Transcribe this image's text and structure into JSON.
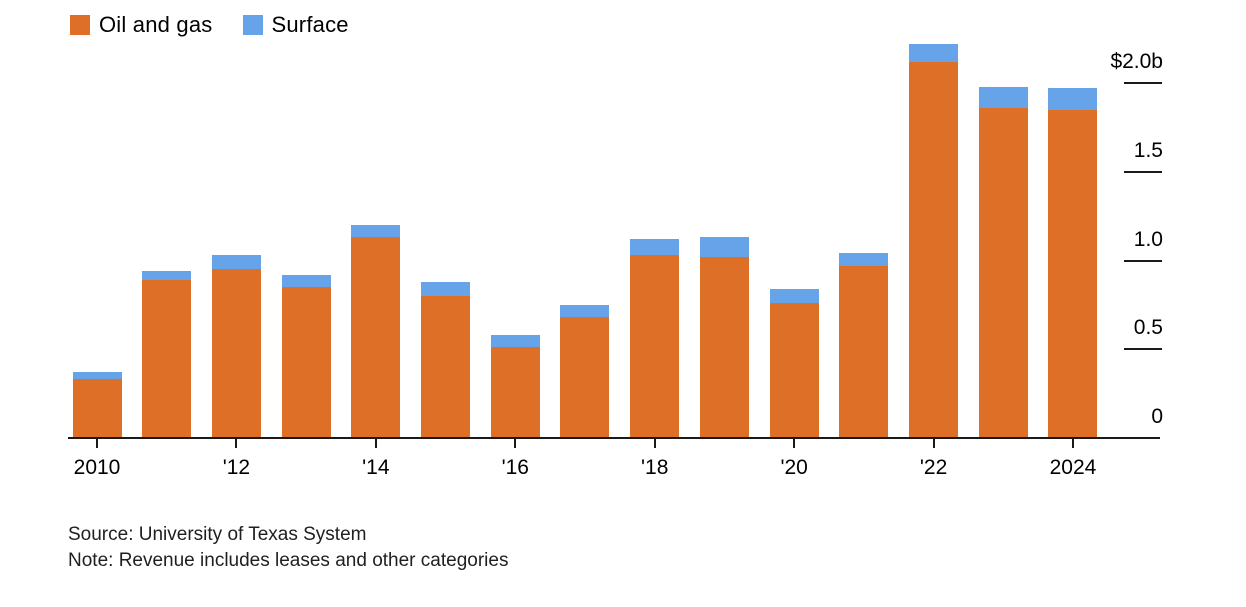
{
  "legend": {
    "items": [
      {
        "label": "Oil and gas",
        "color": "#DD6F27"
      },
      {
        "label": "Surface",
        "color": "#67A3E8"
      }
    ]
  },
  "chart_data": {
    "type": "bar",
    "stacked": true,
    "units": "billions USD",
    "title": "",
    "xlabel": "",
    "ylabel": "",
    "grid": false,
    "legend_position": "top-left",
    "categories": [
      2010,
      2011,
      2012,
      2013,
      2014,
      2015,
      2016,
      2017,
      2018,
      2019,
      2020,
      2021,
      2022,
      2023,
      2024
    ],
    "series": [
      {
        "name": "Oil and gas",
        "color": "#DD6F27",
        "values": [
          0.33,
          0.89,
          0.95,
          0.85,
          1.13,
          0.8,
          0.51,
          0.68,
          1.03,
          1.02,
          0.76,
          0.97,
          2.12,
          1.86,
          1.85
        ]
      },
      {
        "name": "Surface",
        "color": "#67A3E8",
        "values": [
          0.04,
          0.05,
          0.08,
          0.07,
          0.07,
          0.08,
          0.07,
          0.07,
          0.09,
          0.11,
          0.08,
          0.07,
          0.1,
          0.12,
          0.12
        ]
      }
    ],
    "x_ticks": [
      {
        "year": 2010,
        "label": "2010"
      },
      {
        "year": 2012,
        "label": "'12"
      },
      {
        "year": 2014,
        "label": "'14"
      },
      {
        "year": 2016,
        "label": "'16"
      },
      {
        "year": 2018,
        "label": "'18"
      },
      {
        "year": 2020,
        "label": "'20"
      },
      {
        "year": 2022,
        "label": "'22"
      },
      {
        "year": 2024,
        "label": "2024"
      }
    ],
    "y_ticks": [
      {
        "value": 2.0,
        "label": "$2.0b"
      },
      {
        "value": 1.5,
        "label": "1.5"
      },
      {
        "value": 1.0,
        "label": "1.0"
      },
      {
        "value": 0.5,
        "label": "0.5"
      },
      {
        "value": 0,
        "label": "0"
      }
    ],
    "ylim": [
      0,
      2.25
    ]
  },
  "footer": {
    "source": "Source: University of Texas System",
    "note": "Note: Revenue includes leases and other categories"
  }
}
